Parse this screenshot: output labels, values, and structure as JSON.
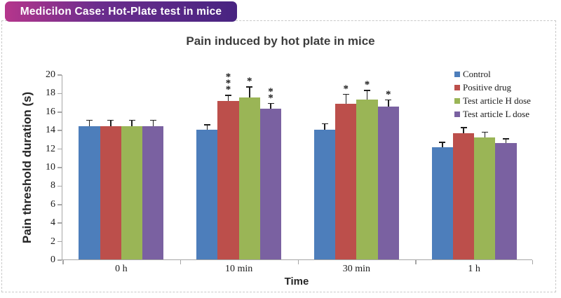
{
  "header": {
    "title": "Medicilon Case: Hot-Plate test in mice",
    "gradient_from": "#b5368c",
    "gradient_mid": "#6b2d8d",
    "gradient_to": "#482481"
  },
  "chart_data": {
    "type": "bar",
    "title": "Pain induced by hot plate in mice",
    "xlabel": "Time",
    "ylabel": "Pain threshold duration (s)",
    "ylim": [
      0,
      20
    ],
    "ytick_step": 2,
    "grid": false,
    "legend_position": "right",
    "error_bars": "upper whisker, SD",
    "categories": [
      "0 h",
      "10 min",
      "30 min",
      "1 h"
    ],
    "series": [
      {
        "name": "Control",
        "color": "#4d7ebb",
        "values": [
          14.4,
          14.0,
          14.0,
          12.1
        ],
        "errors": [
          0.7,
          0.6,
          0.7,
          0.6
        ],
        "sig": [
          "",
          "",
          "",
          ""
        ]
      },
      {
        "name": "Positive drug",
        "color": "#bc4f4b",
        "values": [
          14.4,
          17.1,
          16.8,
          13.6
        ],
        "errors": [
          0.7,
          0.7,
          1.1,
          0.7
        ],
        "sig": [
          "",
          "***",
          "*",
          ""
        ]
      },
      {
        "name": "Test article H dose",
        "color": "#9ab556",
        "values": [
          14.4,
          17.5,
          17.3,
          13.2
        ],
        "errors": [
          0.7,
          1.2,
          1.0,
          0.6
        ],
        "sig": [
          "",
          "*",
          "*",
          ""
        ]
      },
      {
        "name": "Test article L dose",
        "color": "#7a61a1",
        "values": [
          14.4,
          16.3,
          16.5,
          12.6
        ],
        "errors": [
          0.7,
          0.6,
          0.8,
          0.5
        ],
        "sig": [
          "",
          "**",
          "*",
          ""
        ]
      }
    ]
  }
}
